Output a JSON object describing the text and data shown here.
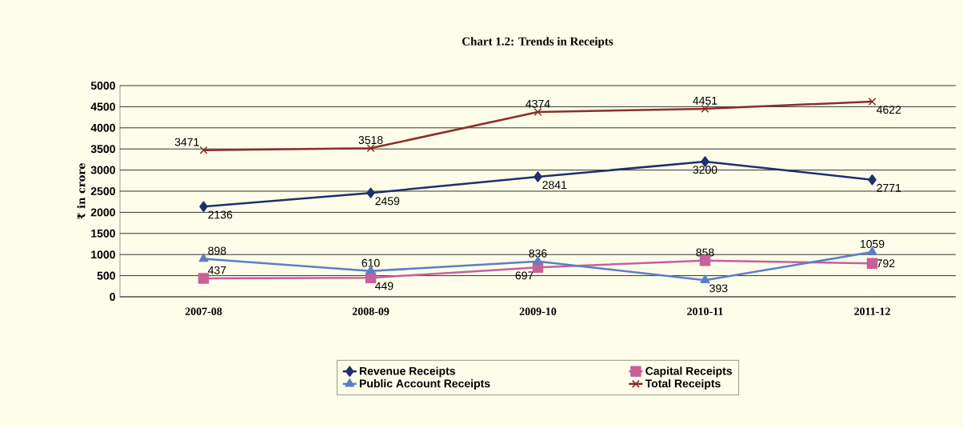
{
  "chart_data": {
    "type": "line",
    "title": "Chart 1.2: Trends in Receipts",
    "ylabel": "₹ in crore",
    "categories": [
      "2007-08",
      "2008-09",
      "2009-10",
      "2010-11",
      "2011-12"
    ],
    "series": [
      {
        "name": "Revenue Receipts",
        "color": "#1f2f6e",
        "marker": "diamond",
        "values": [
          2136,
          2459,
          2841,
          3200,
          2771
        ]
      },
      {
        "name": "Capital Receipts",
        "color": "#c8609a",
        "marker": "square",
        "values": [
          437,
          449,
          697,
          858,
          792
        ]
      },
      {
        "name": "Public Account Receipts",
        "color": "#5b7ec8",
        "marker": "triangle",
        "values": [
          898,
          610,
          836,
          393,
          1059
        ]
      },
      {
        "name": "Total Receipts",
        "color": "#8b2e2a",
        "marker": "cross",
        "values": [
          3471,
          3518,
          4374,
          4451,
          4622
        ]
      }
    ],
    "ylim": [
      0,
      5000
    ],
    "yticks": [
      0,
      500,
      1000,
      1500,
      2000,
      2500,
      3000,
      3500,
      4000,
      4500,
      5000
    ],
    "grid": "y",
    "legend": "bottom",
    "data_labels": true
  }
}
